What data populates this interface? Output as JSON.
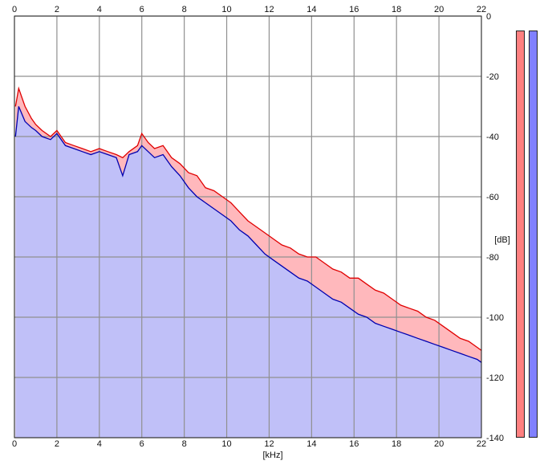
{
  "chart_data": {
    "type": "area",
    "xlabel": "[kHz]",
    "ylabel": "[dB]",
    "xlim": [
      0,
      22
    ],
    "ylim": [
      -140,
      0
    ],
    "x_ticks": [
      "0",
      "2",
      "4",
      "6",
      "8",
      "10",
      "12",
      "14",
      "16",
      "18",
      "20",
      "22"
    ],
    "y_ticks": [
      "0",
      "-20",
      "-40",
      "-60",
      "-80",
      "-100",
      "-120",
      "-140"
    ],
    "grid": true,
    "series": [
      {
        "color": "#e00000",
        "fill": "#ffb8bc",
        "x": [
          0.05,
          0.2,
          0.5,
          0.8,
          1.0,
          1.3,
          1.7,
          2.0,
          2.4,
          2.8,
          3.2,
          3.6,
          4.0,
          4.4,
          4.8,
          5.1,
          5.4,
          5.8,
          6.0,
          6.3,
          6.6,
          7.0,
          7.4,
          7.8,
          8.2,
          8.6,
          9.0,
          9.4,
          9.8,
          10.2,
          10.6,
          11.0,
          11.4,
          11.8,
          12.2,
          12.6,
          13.0,
          13.4,
          13.8,
          14.2,
          14.6,
          15.0,
          15.4,
          15.8,
          16.2,
          16.6,
          17.0,
          17.4,
          17.8,
          18.2,
          18.6,
          19.0,
          19.4,
          19.8,
          20.2,
          20.6,
          21.0,
          21.4,
          21.8,
          22.0
        ],
        "values": [
          -30,
          -24,
          -30,
          -34,
          -36,
          -38,
          -40,
          -38,
          -42,
          -43,
          -44,
          -45,
          -44,
          -45,
          -46,
          -47,
          -45,
          -43,
          -39,
          -42,
          -44,
          -43,
          -47,
          -49,
          -52,
          -53,
          -57,
          -58,
          -60,
          -62,
          -65,
          -68,
          -70,
          -72,
          -74,
          -76,
          -77,
          -79,
          -80,
          -80,
          -82,
          -84,
          -85,
          -87,
          -87,
          -89,
          -91,
          -92,
          -94,
          -96,
          -97,
          -98,
          -100,
          -101,
          -103,
          -105,
          -107,
          -108,
          -110,
          -111
        ]
      },
      {
        "color": "#0000b0",
        "fill": "#c0c0f8",
        "x": [
          0.05,
          0.2,
          0.5,
          0.8,
          1.0,
          1.3,
          1.7,
          2.0,
          2.4,
          2.8,
          3.2,
          3.6,
          4.0,
          4.4,
          4.8,
          5.1,
          5.4,
          5.8,
          6.0,
          6.3,
          6.6,
          7.0,
          7.4,
          7.8,
          8.2,
          8.6,
          9.0,
          9.4,
          9.8,
          10.2,
          10.6,
          11.0,
          11.4,
          11.8,
          12.2,
          12.6,
          13.0,
          13.4,
          13.8,
          14.2,
          14.6,
          15.0,
          15.4,
          15.8,
          16.2,
          16.6,
          17.0,
          17.4,
          17.8,
          18.2,
          18.6,
          19.0,
          19.4,
          19.8,
          20.2,
          20.6,
          21.0,
          21.4,
          21.8,
          22.0
        ],
        "values": [
          -40,
          -30,
          -35,
          -37,
          -38,
          -40,
          -41,
          -39,
          -43,
          -44,
          -45,
          -46,
          -45,
          -46,
          -47,
          -53,
          -46,
          -45,
          -43,
          -45,
          -47,
          -46,
          -50,
          -53,
          -57,
          -60,
          -62,
          -64,
          -66,
          -68,
          -71,
          -73,
          -76,
          -79,
          -81,
          -83,
          -85,
          -87,
          -88,
          -90,
          -92,
          -94,
          -95,
          -97,
          -99,
          -100,
          -102,
          -103,
          -104,
          -105,
          -106,
          -107,
          -108,
          -109,
          -110,
          -111,
          -112,
          -113,
          -114,
          -115
        ]
      }
    ],
    "level_meters": [
      {
        "color": "#ff8080",
        "level": 1.0
      },
      {
        "color": "#8080ff",
        "level": 1.0
      }
    ]
  }
}
